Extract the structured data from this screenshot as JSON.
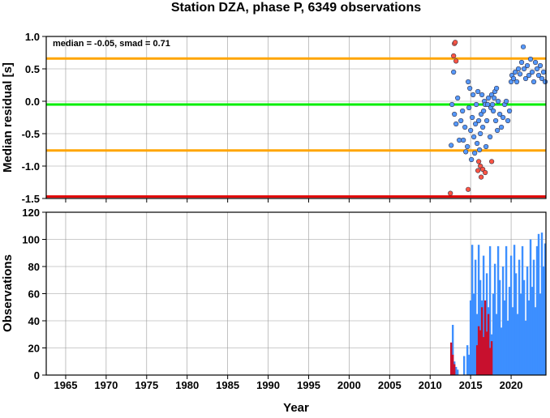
{
  "chart_data": [
    {
      "type": "scatter",
      "title": "Station DZA, phase P, 6349 observations",
      "ylabel": "Median residual [s]",
      "annotation": "median = -0.05, smad = 0.71",
      "xlim": [
        1962.6,
        2024.3
      ],
      "xticks": [
        1965,
        1970,
        1975,
        1980,
        1985,
        1990,
        1995,
        2000,
        2005,
        2010,
        2015,
        2020
      ],
      "ylim": [
        -1.5,
        1.0
      ],
      "yticks": [
        {
          "value": -1.5,
          "label": "-1.5"
        },
        {
          "value": -1.0,
          "label": "-1.0"
        },
        -0.5,
        {
          "value": 0.0,
          "label": "0.0"
        },
        0.5,
        {
          "value": 1.0,
          "label": "1.0"
        }
      ],
      "grid": true,
      "hlines": [
        {
          "value": 0.66,
          "color": "#ffa500"
        },
        {
          "value": -0.05,
          "color": "#00ee00"
        },
        {
          "value": -0.76,
          "color": "#ffa500"
        },
        {
          "value": -1.47,
          "color": "#e00000"
        }
      ],
      "series": [
        {
          "color": "#5599ff",
          "x": [
            2012.6,
            2012.7,
            2012.9,
            2013.0,
            2013.2,
            2013.4,
            2013.6,
            2013.8,
            2014.0,
            2014.1,
            2014.3,
            2014.4,
            2014.6,
            2014.7,
            2014.8,
            2014.9,
            2015.0,
            2015.1,
            2015.2,
            2015.3,
            2015.4,
            2015.5,
            2015.6,
            2015.7,
            2015.8,
            2015.9,
            2016.0,
            2016.1,
            2016.2,
            2016.3,
            2016.4,
            2016.5,
            2016.6,
            2016.7,
            2016.8,
            2016.9,
            2017.0,
            2017.1,
            2017.2,
            2017.4,
            2017.5,
            2017.6,
            2017.7,
            2017.8,
            2017.9,
            2018.0,
            2018.1,
            2018.2,
            2018.3,
            2018.4,
            2018.6,
            2018.8,
            2019.0,
            2019.2,
            2019.4,
            2019.6,
            2019.8,
            2020.0,
            2020.1,
            2020.3,
            2020.5,
            2020.7,
            2020.9,
            2021.1,
            2021.3,
            2021.5,
            2021.6,
            2021.8,
            2022.0,
            2022.2,
            2022.4,
            2022.6,
            2022.8,
            2023.0,
            2023.2,
            2023.4,
            2023.6,
            2023.8,
            2024.0,
            2024.2
          ],
          "values": [
            -0.68,
            -0.05,
            0.45,
            -0.2,
            -0.35,
            0.05,
            -0.6,
            -0.3,
            -0.15,
            -0.6,
            -0.4,
            -0.78,
            -0.7,
            0.3,
            -0.1,
            0.2,
            -0.45,
            -0.9,
            -0.25,
            0.1,
            -0.55,
            -0.8,
            -0.35,
            -0.05,
            -0.65,
            0.15,
            -0.3,
            -0.75,
            -0.5,
            -0.2,
            0.1,
            -0.4,
            -0.15,
            0.0,
            -0.05,
            -0.7,
            -0.3,
            -0.05,
            0.05,
            -0.55,
            -0.1,
            0.1,
            -0.05,
            -0.15,
            0.05,
            0.15,
            -0.3,
            0.2,
            -0.45,
            0.0,
            -0.2,
            -0.4,
            -0.25,
            -0.05,
            0.0,
            -0.3,
            -0.15,
            0.3,
            0.4,
            0.35,
            0.45,
            0.3,
            0.5,
            0.42,
            0.6,
            0.84,
            0.5,
            0.35,
            0.55,
            0.4,
            0.65,
            0.45,
            0.3,
            0.6,
            0.5,
            0.4,
            0.55,
            0.35,
            0.45,
            0.3
          ]
        },
        {
          "color": "#ff5544",
          "x": [
            2013.0,
            2013.1,
            2012.9,
            2013.2,
            2012.5,
            2014.7,
            2016.0,
            2016.2,
            2016.5,
            2016.8,
            2016.3,
            2017.6,
            2015.9
          ],
          "values": [
            0.89,
            0.91,
            0.7,
            0.62,
            -1.42,
            -1.36,
            -0.93,
            -1.0,
            -1.05,
            -1.1,
            -1.17,
            -0.93,
            -1.07
          ]
        }
      ]
    },
    {
      "type": "bar",
      "ylabel": "Observations",
      "xlabel": "Year",
      "xlim": [
        1962.6,
        2024.3
      ],
      "xticks": [
        1965,
        1970,
        1975,
        1980,
        1985,
        1990,
        1995,
        2000,
        2005,
        2010,
        2015,
        2020
      ],
      "ylim": [
        0,
        120
      ],
      "yticks": [
        0,
        20,
        40,
        60,
        80,
        100,
        120
      ],
      "grid": true,
      "series": [
        {
          "color": "#3d8fff",
          "x": [
            2012.6,
            2012.8,
            2013.0,
            2013.2,
            2013.4,
            2014.2,
            2014.6,
            2014.8,
            2015.0,
            2015.2,
            2015.4,
            2015.6,
            2015.8,
            2016.0,
            2016.2,
            2016.4,
            2016.6,
            2016.8,
            2017.0,
            2017.2,
            2017.4,
            2017.6,
            2017.8,
            2018.0,
            2018.2,
            2018.4,
            2018.6,
            2018.8,
            2019.0,
            2019.2,
            2019.4,
            2019.6,
            2019.8,
            2020.0,
            2020.2,
            2020.4,
            2020.6,
            2020.8,
            2021.0,
            2021.2,
            2021.4,
            2021.6,
            2021.8,
            2022.0,
            2022.2,
            2022.4,
            2022.6,
            2022.8,
            2023.0,
            2023.2,
            2023.4,
            2023.6,
            2023.8,
            2024.0,
            2024.2
          ],
          "values": [
            20,
            37,
            10,
            6,
            4,
            14,
            22,
            15,
            55,
            96,
            60,
            85,
            45,
            96,
            70,
            55,
            88,
            40,
            75,
            50,
            95,
            30,
            60,
            82,
            45,
            95,
            70,
            35,
            80,
            55,
            95,
            40,
            65,
            88,
            50,
            96,
            75,
            45,
            85,
            60,
            95,
            70,
            40,
            80,
            55,
            100,
            65,
            85,
            50,
            95,
            104,
            60,
            105,
            80,
            97
          ]
        },
        {
          "color": "#c8102e",
          "x": [
            2012.6,
            2012.8,
            2013.0,
            2015.8,
            2016.0,
            2016.2,
            2016.4,
            2016.6,
            2016.8,
            2017.0,
            2017.2,
            2017.4,
            2017.6
          ],
          "values": [
            24,
            15,
            8,
            22,
            36,
            33,
            50,
            28,
            55,
            32,
            45,
            20,
            25
          ]
        }
      ]
    }
  ]
}
